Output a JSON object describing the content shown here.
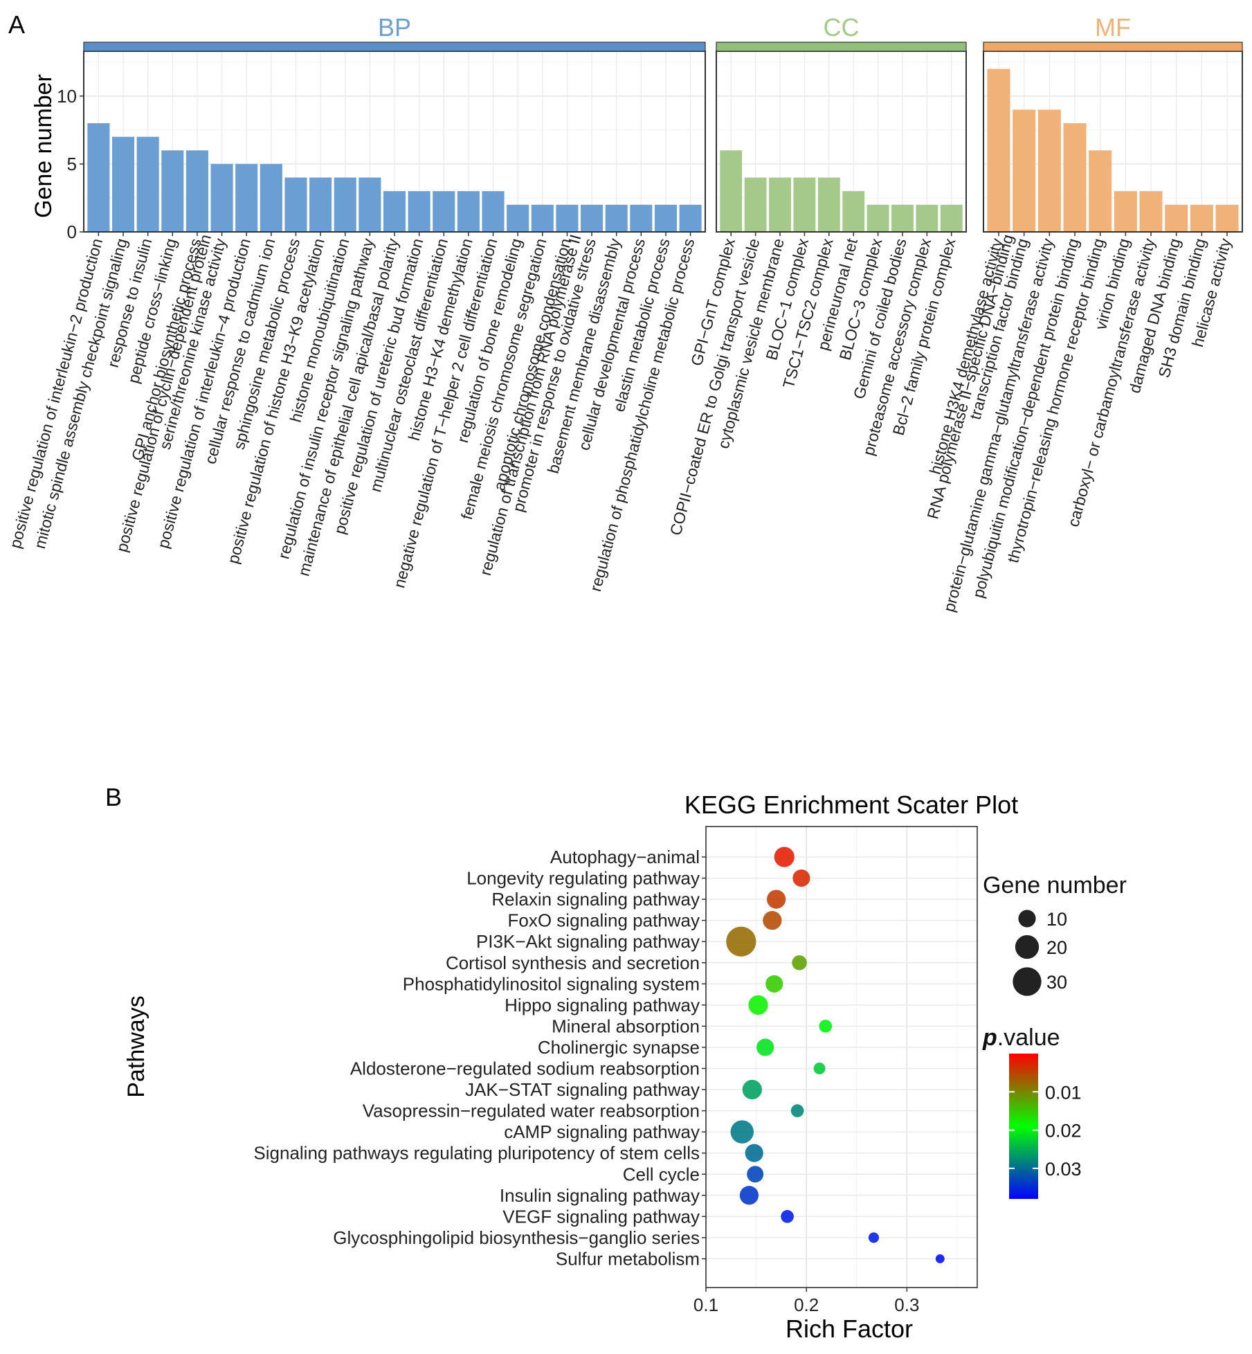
{
  "panel_labels": {
    "a": "A",
    "b": "B"
  },
  "chart_data": [
    {
      "type": "bar",
      "ylabel": "Gene number",
      "ylim": [
        0,
        13.3
      ],
      "yticks": [
        0,
        5,
        10
      ],
      "grid": true,
      "facets": [
        {
          "name": "BP",
          "color": "#6b9ed2",
          "strip_color": "#5a8fca",
          "categories": [
            "positive regulation of interleukin-2 production",
            "mitotic spindle assembly checkpoint signaling",
            "response to insulin",
            "peptide cross-linking",
            "GPI anchor biosynthetic process",
            "positive regulation of cyclin-dependent protein serine/threonine kinase activity",
            "positive regulation of interleukin-4 production",
            "cellular response to cadmium ion",
            "sphingosine metabolic process",
            "positive regulation of histone H3-K9 acetylation",
            "histone monoubiquitination",
            "regulation of insulin receptor signaling pathway",
            "maintenance of epithelial cell apical/basal polarity",
            "positive regulation of ureteric bud formation",
            "multinuclear osteoclast differentiation",
            "histone H3-K4 demethylation",
            "negative regulation of T-helper 2 cell differentiation",
            "regulation of bone remodeling",
            "female meiosis chromosome segregation",
            "apoptotic chromosome condensation",
            "regulation of transcription from RNA polymerase II promoter in response to oxidative stress",
            "basement membrane disassembly",
            "cellular developmental process",
            "elastin metabolic process",
            "regulation of phosphatidylcholine metabolic process"
          ],
          "label_lines": [
            [
              "positive regulation of interleukin−2 production"
            ],
            [
              "mitotic spindle assembly checkpoint signaling"
            ],
            [
              "response to insulin"
            ],
            [
              "peptide cross−linking"
            ],
            [
              "GPI anchor biosynthetic process"
            ],
            [
              "positive regulation of cyclin−dependent protein",
              "serine/threonine kinase activity"
            ],
            [
              "positive regulation of interleukin−4 production"
            ],
            [
              "cellular response to cadmium ion"
            ],
            [
              "sphingosine metabolic process"
            ],
            [
              "positive regulation of histone H3−K9 acetylation"
            ],
            [
              "histone monoubiquitination"
            ],
            [
              "regulation of insulin receptor signaling pathway"
            ],
            [
              "maintenance of epithelial cell apical/basal polarity"
            ],
            [
              "positive regulation of ureteric bud formation"
            ],
            [
              "multinuclear osteoclast differentiation"
            ],
            [
              "histone H3−K4 demethylation"
            ],
            [
              "negative regulation of T−helper 2 cell differentiation"
            ],
            [
              "regulation of bone remodeling"
            ],
            [
              "female meiosis chromosome segregation"
            ],
            [
              "apoptotic chromosome condensation"
            ],
            [
              "regulation of transcription from RNA polymerase II",
              "promoter in response to oxidative stress"
            ],
            [
              "basement membrane disassembly"
            ],
            [
              "cellular developmental process"
            ],
            [
              "elastin metabolic process"
            ],
            [
              "regulation of phosphatidylcholine metabolic process"
            ]
          ],
          "values": [
            8,
            7,
            7,
            6,
            6,
            5,
            5,
            5,
            4,
            4,
            4,
            4,
            3,
            3,
            3,
            3,
            3,
            2,
            2,
            2,
            2,
            2,
            2,
            2,
            2
          ]
        },
        {
          "name": "CC",
          "color": "#a4c98a",
          "strip_color": "#92c07a",
          "categories": [
            "GPI-GnT complex",
            "COPII-coated ER to Golgi transport vesicle",
            "cytoplasmic vesicle membrane",
            "BLOC-1 complex",
            "TSC1-TSC2 complex",
            "perineuronal net",
            "BLOC-3 complex",
            "Gemini of coiled bodies",
            "proteasome accessory complex",
            "Bcl-2 family protein complex"
          ],
          "label_lines": [
            [
              "GPI−GnT complex"
            ],
            [
              "COPII−coated ER to Golgi transport vesicle"
            ],
            [
              "cytoplasmic vesicle membrane"
            ],
            [
              "BLOC−1 complex"
            ],
            [
              "TSC1−TSC2 complex"
            ],
            [
              "perineuronal net"
            ],
            [
              "BLOC−3 complex"
            ],
            [
              "Gemini of coiled bodies"
            ],
            [
              "proteasome accessory complex"
            ],
            [
              "Bcl−2 family protein complex"
            ]
          ],
          "values": [
            6,
            4,
            4,
            4,
            4,
            3,
            2,
            2,
            2,
            2
          ]
        },
        {
          "name": "MF",
          "color": "#f1b27a",
          "strip_color": "#f0a868",
          "categories": [
            "histone H3K4 demethylase activity",
            "RNA polymerase II-specific DNA-binding transcription factor binding",
            "protein-glutamine gamma-glutamyltransferase activity",
            "polyubiquitin modification-dependent protein binding",
            "thyrotropin-releasing hormone receptor binding",
            "virion binding",
            "carboxyl- or carbamoyltransferase activity",
            "damaged DNA binding",
            "SH3 domain binding",
            "helicase activity"
          ],
          "label_lines": [
            [
              "histone H3K4 demethylase activity"
            ],
            [
              "RNA polymerase II−specific DNA−binding",
              "transcription factor binding"
            ],
            [
              "protein−glutamine gamma−glutamyltransferase activity"
            ],
            [
              "polyubiquitin modification−dependent protein binding"
            ],
            [
              "thyrotropin−releasing hormone receptor binding"
            ],
            [
              "virion binding"
            ],
            [
              "carboxyl− or carbamoyltransferase activity"
            ],
            [
              "damaged DNA binding"
            ],
            [
              "SH3 domain binding"
            ],
            [
              "helicase activity"
            ]
          ],
          "values": [
            12,
            9,
            9,
            8,
            6,
            3,
            3,
            2,
            2,
            2
          ]
        }
      ]
    },
    {
      "type": "scatter",
      "title": "KEGG Enrichment Scater Plot",
      "xlabel": "Rich Factor",
      "ylabel": "Pathways",
      "xlim": [
        0.1,
        0.37
      ],
      "xticks": [
        0.1,
        0.2,
        0.3
      ],
      "xtick_labels": [
        "0.1",
        "0.2",
        "0.3"
      ],
      "grid": true,
      "pathways": [
        {
          "name": "Autophagy−animal",
          "rich_factor": 0.178,
          "gene_number": 14,
          "p_value": 0.002
        },
        {
          "name": "Longevity regulating pathway",
          "rich_factor": 0.195,
          "gene_number": 10,
          "p_value": 0.003
        },
        {
          "name": "Relaxin signaling pathway",
          "rich_factor": 0.17,
          "gene_number": 12,
          "p_value": 0.0045
        },
        {
          "name": "FoxO signaling pathway",
          "rich_factor": 0.166,
          "gene_number": 12,
          "p_value": 0.0055
        },
        {
          "name": "PI3K−Akt signaling pathway",
          "rich_factor": 0.135,
          "gene_number": 33,
          "p_value": 0.008
        },
        {
          "name": "Cortisol synthesis and secretion",
          "rich_factor": 0.193,
          "gene_number": 7,
          "p_value": 0.012
        },
        {
          "name": "Phosphatidylinositol signaling system",
          "rich_factor": 0.168,
          "gene_number": 10,
          "p_value": 0.015
        },
        {
          "name": "Hippo signaling pathway",
          "rich_factor": 0.152,
          "gene_number": 13,
          "p_value": 0.018
        },
        {
          "name": "Mineral absorption",
          "rich_factor": 0.219,
          "gene_number": 5,
          "p_value": 0.02
        },
        {
          "name": "Cholinergic synapse",
          "rich_factor": 0.159,
          "gene_number": 10,
          "p_value": 0.021
        },
        {
          "name": "Aldosterone−regulated sodium reabsorption",
          "rich_factor": 0.213,
          "gene_number": 4,
          "p_value": 0.023
        },
        {
          "name": "JAK−STAT signaling pathway",
          "rich_factor": 0.146,
          "gene_number": 13,
          "p_value": 0.026
        },
        {
          "name": "Vasopressin−regulated water reabsorption",
          "rich_factor": 0.191,
          "gene_number": 5,
          "p_value": 0.028
        },
        {
          "name": "cAMP signaling pathway",
          "rich_factor": 0.136,
          "gene_number": 19,
          "p_value": 0.029
        },
        {
          "name": "Signaling pathways regulating pluripotency of stem cells",
          "rich_factor": 0.148,
          "gene_number": 11,
          "p_value": 0.03
        },
        {
          "name": "Cell cycle",
          "rich_factor": 0.149,
          "gene_number": 9,
          "p_value": 0.033
        },
        {
          "name": "Insulin signaling pathway",
          "rich_factor": 0.143,
          "gene_number": 12,
          "p_value": 0.034
        },
        {
          "name": "VEGF signaling pathway",
          "rich_factor": 0.181,
          "gene_number": 5,
          "p_value": 0.036
        },
        {
          "name": "Glycosphingolipid biosynthesis−ganglio series",
          "rich_factor": 0.267,
          "gene_number": 3,
          "p_value": 0.036
        },
        {
          "name": "Sulfur metabolism",
          "rich_factor": 0.333,
          "gene_number": 2,
          "p_value": 0.037
        }
      ],
      "legend": {
        "size_title": "Gene number",
        "size_values": [
          10,
          20,
          30
        ],
        "size_labels": [
          "10",
          "20",
          "30"
        ],
        "color_title_italic": "p",
        "color_title_rest": ".value",
        "color_range": [
          0.0,
          0.038
        ],
        "color_ticks": [
          0.01,
          0.02,
          0.03
        ],
        "color_tick_labels": [
          "0.01",
          "0.02",
          "0.03"
        ],
        "colors": [
          "#ff0000",
          "#00ff00",
          "#0000ff"
        ]
      }
    }
  ]
}
